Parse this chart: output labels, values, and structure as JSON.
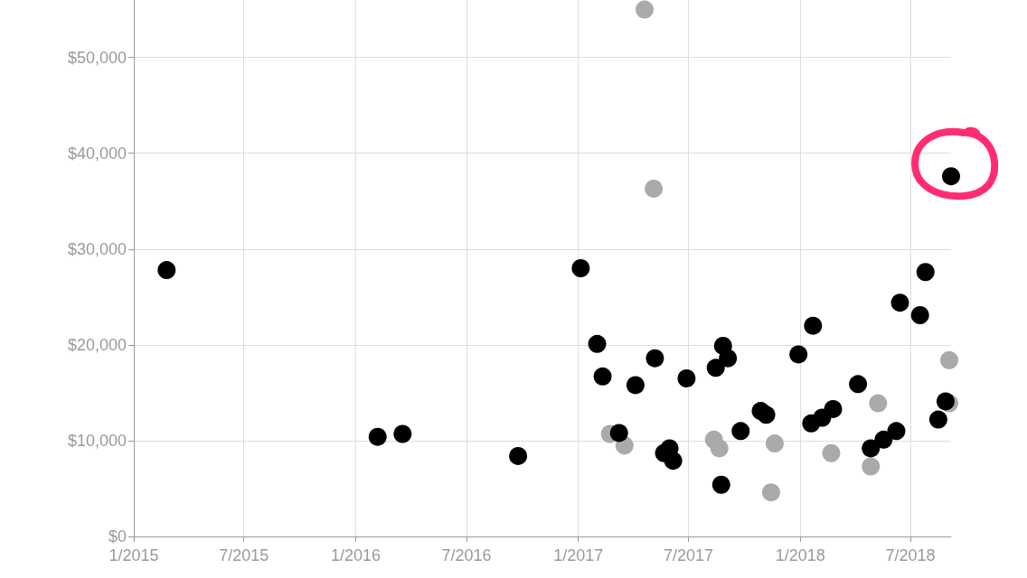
{
  "chart_data": {
    "type": "scatter",
    "xlim": [
      "2015-01-01",
      "2018-09-06"
    ],
    "xticks": [
      {
        "value": "2015-01-01",
        "label": "1/2015"
      },
      {
        "value": "2015-07-01",
        "label": "7/2015"
      },
      {
        "value": "2016-01-01",
        "label": "1/2016"
      },
      {
        "value": "2016-07-01",
        "label": "7/2016"
      },
      {
        "value": "2017-01-01",
        "label": "1/2017"
      },
      {
        "value": "2017-07-01",
        "label": "7/2017"
      },
      {
        "value": "2018-01-01",
        "label": "1/2018"
      },
      {
        "value": "2018-07-01",
        "label": "7/2018"
      }
    ],
    "ylim": [
      0,
      56000
    ],
    "yticks": [
      {
        "value": 0,
        "label": "$0"
      },
      {
        "value": 10000,
        "label": "$10,000"
      },
      {
        "value": 20000,
        "label": "$20,000"
      },
      {
        "value": 30000,
        "label": "$30,000"
      },
      {
        "value": 40000,
        "label": "$40,000"
      },
      {
        "value": 50000,
        "label": "$50,000"
      }
    ],
    "grid": true,
    "marker": "circle",
    "series": [
      {
        "color": "#aaaaaa",
        "x": [
          "2017-04-20",
          "2017-05-05",
          "2017-02-22",
          "2017-03-18",
          "2017-08-12",
          "2017-08-21",
          "2017-11-14",
          "2017-11-20",
          "2018-02-21",
          "2018-04-27",
          "2018-05-09",
          "2018-09-03",
          "2018-09-03"
        ],
        "values": [
          55000,
          36300,
          10700,
          9500,
          10100,
          9200,
          4600,
          9700,
          8700,
          7300,
          13900,
          18400,
          13900
        ]
      },
      {
        "color": "#000000",
        "x": [
          "2015-02-24",
          "2016-02-06",
          "2016-03-18",
          "2016-09-24",
          "2017-01-05",
          "2017-02-01",
          "2017-02-10",
          "2017-03-09",
          "2017-04-05",
          "2017-05-07",
          "2017-05-22",
          "2017-05-31",
          "2017-06-06",
          "2017-06-28",
          "2017-08-15",
          "2017-08-27",
          "2017-09-04",
          "2017-08-24",
          "2017-09-25",
          "2017-10-28",
          "2017-11-06",
          "2017-12-29",
          "2018-01-22",
          "2018-01-19",
          "2018-02-06",
          "2018-02-24",
          "2018-04-06",
          "2018-04-27",
          "2018-05-18",
          "2018-06-08",
          "2018-06-14",
          "2018-07-17",
          "2018-07-26",
          "2018-08-16",
          "2018-08-28",
          "2018-09-06"
        ],
        "values": [
          27800,
          10400,
          10700,
          8400,
          28000,
          20100,
          16700,
          10800,
          15800,
          18600,
          8700,
          9200,
          7900,
          16500,
          17600,
          19900,
          18600,
          5400,
          11000,
          13100,
          12700,
          19000,
          22000,
          11800,
          12400,
          13300,
          15900,
          9200,
          10100,
          11000,
          24400,
          23100,
          27600,
          12200,
          14100,
          37600
        ]
      }
    ]
  }
}
